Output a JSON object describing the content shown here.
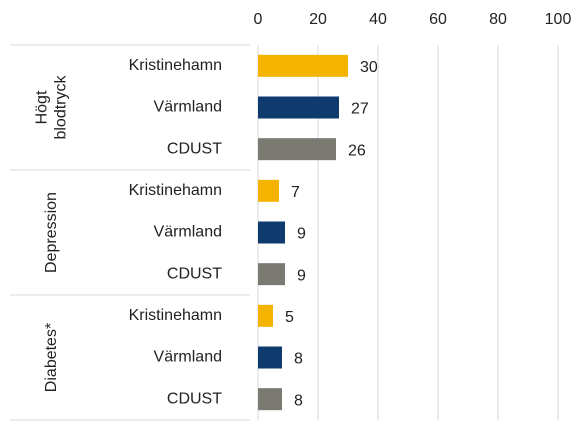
{
  "chart_data": {
    "type": "bar",
    "orientation": "horizontal",
    "groups": [
      [
        "Högt",
        "blodtryck"
      ],
      [
        "Depression"
      ],
      [
        "Diabetes*"
      ]
    ],
    "series": [
      {
        "name": "Kristinehamn",
        "color": "#f5b400",
        "values": [
          30,
          7,
          5
        ]
      },
      {
        "name": "Värmland",
        "color": "#0e3a6e",
        "values": [
          27,
          9,
          8
        ]
      },
      {
        "name": "CDUST",
        "color": "#7a7a72",
        "values": [
          26,
          9,
          8
        ]
      }
    ],
    "xlim": [
      0,
      100
    ],
    "xticks": [
      0,
      20,
      40,
      60,
      80,
      100
    ],
    "grid": true
  }
}
